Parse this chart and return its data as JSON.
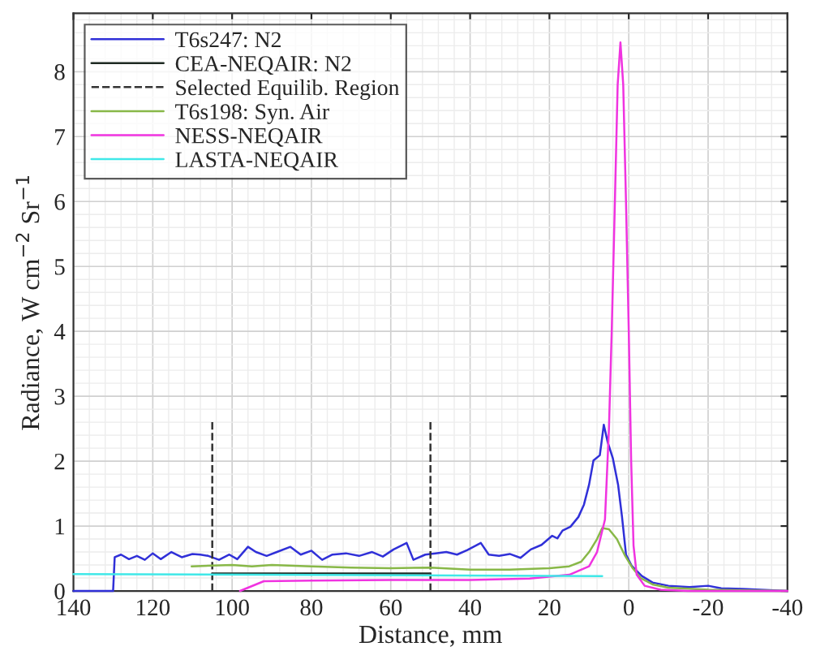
{
  "chart_data": {
    "type": "line",
    "xlabel": "Distance, mm",
    "ylabel": "Radiance, W cm$^{−2}$ Sr$^{−1}$",
    "xlim": [
      140,
      -40
    ],
    "xticks": [
      140,
      120,
      100,
      80,
      60,
      40,
      20,
      0,
      -20,
      -40
    ],
    "ylim": [
      0,
      8.9
    ],
    "yticks": [
      0,
      1,
      2,
      3,
      4,
      5,
      6,
      7,
      8
    ],
    "grid": true,
    "legend": "top left",
    "marker": "none",
    "series": [
      {
        "name": "T6s247: N2",
        "color": "#3030d8",
        "x": [
          140,
          130,
          129.6,
          128,
          126,
          124,
          122,
          120,
          118,
          115.3,
          112.7,
          110,
          108,
          106,
          103.3,
          100.7,
          98.7,
          96,
          94,
          91.3,
          88.7,
          85.3,
          82.7,
          80,
          77.3,
          74.7,
          71.3,
          68,
          64.7,
          62,
          59.3,
          56,
          54.3,
          51.3,
          48.7,
          46,
          43.3,
          40.7,
          37.3,
          35.3,
          32.7,
          30,
          27.3,
          24.7,
          22,
          19.3,
          18,
          16.7,
          14.7,
          12.7,
          11.3,
          10,
          8.9,
          7.3,
          6.3,
          5.3,
          4,
          2.7,
          1.7,
          0.7,
          -0.7,
          -3.3,
          -6,
          -10,
          -15.3,
          -20,
          -23.3,
          -28.7,
          -40
        ],
        "values": [
          0,
          0,
          0.52,
          0.56,
          0.49,
          0.54,
          0.48,
          0.58,
          0.49,
          0.6,
          0.52,
          0.57,
          0.56,
          0.54,
          0.48,
          0.56,
          0.49,
          0.68,
          0.6,
          0.54,
          0.6,
          0.68,
          0.56,
          0.62,
          0.48,
          0.56,
          0.58,
          0.54,
          0.6,
          0.53,
          0.64,
          0.74,
          0.48,
          0.56,
          0.58,
          0.6,
          0.56,
          0.63,
          0.74,
          0.56,
          0.54,
          0.57,
          0.51,
          0.64,
          0.71,
          0.85,
          0.81,
          0.93,
          0.99,
          1.14,
          1.33,
          1.64,
          2.01,
          2.09,
          2.56,
          2.29,
          2.04,
          1.64,
          1.14,
          0.56,
          0.39,
          0.23,
          0.13,
          0.08,
          0.06,
          0.08,
          0.04,
          0.03,
          0
        ]
      },
      {
        "name": "CEA-NEQAIR: N2",
        "color": "#1e2a22",
        "x": [
          105,
          50
        ],
        "values": [
          0.27,
          0.27
        ]
      },
      {
        "name": "Selected Equilib. Region",
        "color": "#333333",
        "line_style": "dashed",
        "x": [
          105,
          105,
          null,
          50,
          50
        ],
        "values": [
          0,
          2.6,
          null,
          2.6,
          0
        ]
      },
      {
        "name": "T6s198: Syn. Air",
        "color": "#88b848",
        "x": [
          110.2,
          105,
          100,
          95,
          90,
          80,
          70,
          60,
          50,
          40,
          30,
          20,
          15,
          12,
          10,
          8,
          6.7,
          5,
          3,
          1,
          -1,
          -3,
          -6,
          -10,
          -20,
          -40
        ],
        "values": [
          0.38,
          0.39,
          0.4,
          0.38,
          0.4,
          0.38,
          0.36,
          0.35,
          0.36,
          0.33,
          0.33,
          0.35,
          0.38,
          0.45,
          0.6,
          0.8,
          0.97,
          0.95,
          0.8,
          0.55,
          0.35,
          0.2,
          0.1,
          0.05,
          0.02,
          0
        ]
      },
      {
        "name": "NESS-NEQAIR",
        "color": "#f033e0",
        "x": [
          98,
          92,
          80,
          60,
          40,
          25,
          15,
          10,
          8,
          6,
          5,
          4.3,
          3.5,
          2.8,
          2.1,
          1.4,
          0.7,
          0,
          -0.6,
          -1.2,
          -2,
          -4,
          -8,
          -15,
          -40
        ],
        "values": [
          0,
          0.15,
          0.16,
          0.17,
          0.17,
          0.19,
          0.25,
          0.38,
          0.6,
          1.1,
          2.5,
          4,
          6,
          7.8,
          8.45,
          7.8,
          6,
          4,
          2,
          0.7,
          0.25,
          0.08,
          0.02,
          0,
          0
        ]
      },
      {
        "name": "LASTA-NEQAIR",
        "color": "#40e8e8",
        "x": [
          140,
          6.7
        ],
        "values": [
          0.26,
          0.23
        ]
      }
    ]
  }
}
